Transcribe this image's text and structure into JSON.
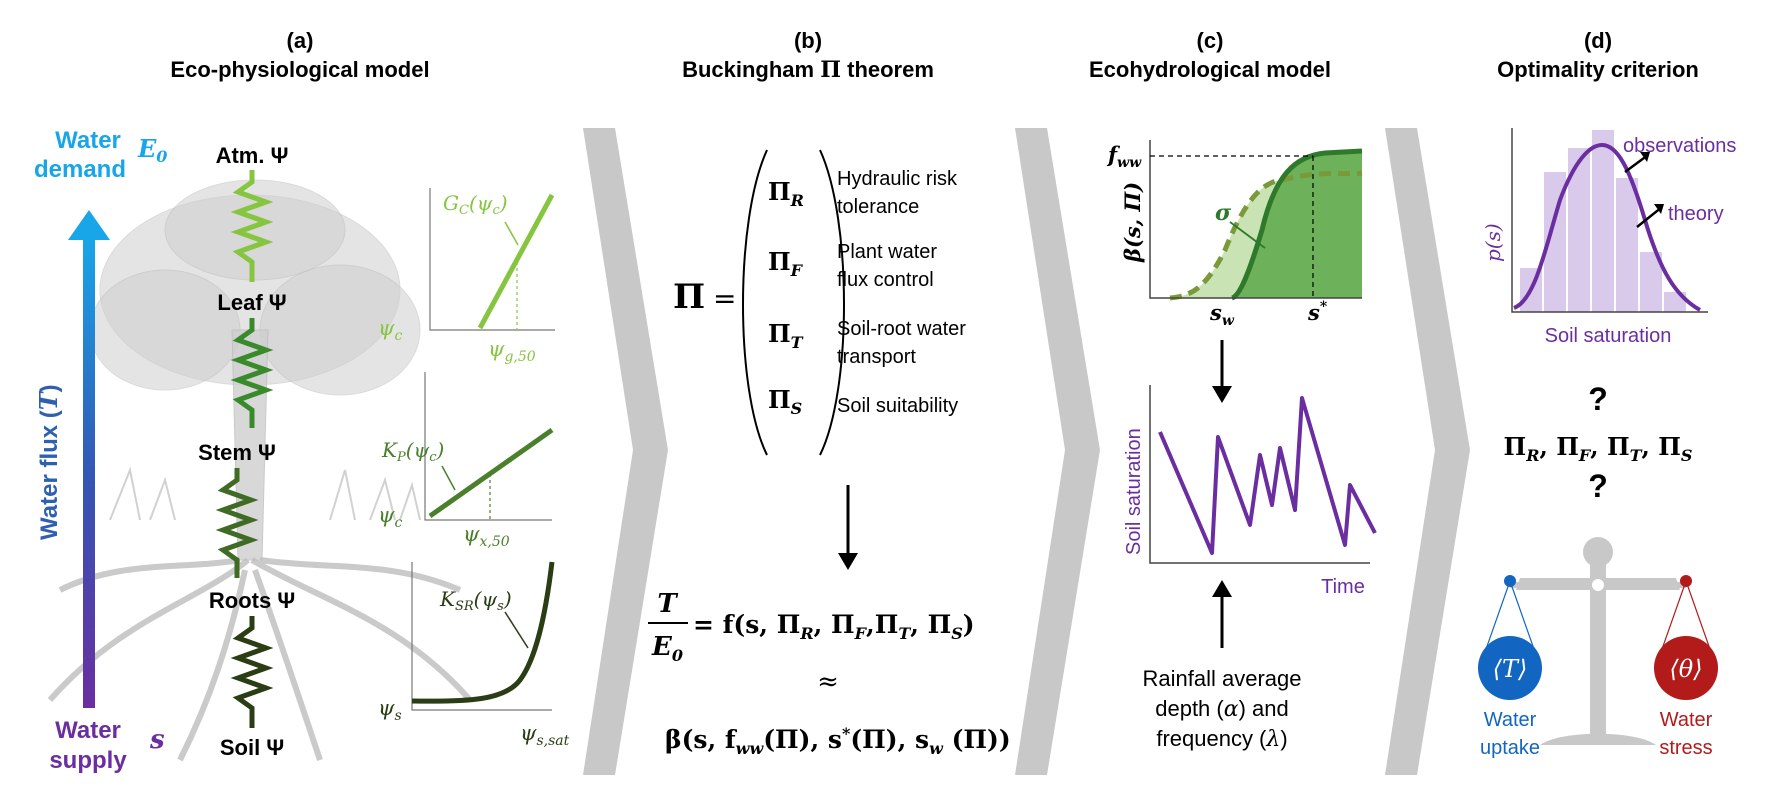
{
  "panel_a": {
    "letter": "(a)",
    "title": "Eco-physiological model",
    "water_demand_line1": "Water",
    "water_demand_line2": "demand",
    "e0": "E",
    "e0_sub": "0",
    "water_supply_line1": "Water",
    "water_supply_line2": "supply",
    "s_symbol": "s",
    "flux_label": "Water flux (",
    "flux_symbol": "T",
    "flux_close": ")",
    "nodes": [
      "Atm. Ψ",
      "Leaf Ψ",
      "Stem Ψ",
      "Roots Ψ",
      "Soil Ψ"
    ],
    "curves": [
      {
        "func": "G",
        "func_sub": "C",
        "arg": "(ψ",
        "arg_sub": "c",
        "close": ")",
        "y_axis": "ψ",
        "y_sub": "c",
        "x_axis": "ψ",
        "x_sub": "g,50",
        "color": "#86c540"
      },
      {
        "func": "K",
        "func_sub": "P",
        "arg": "(ψ",
        "arg_sub": "c",
        "close": ")",
        "y_axis": "ψ",
        "y_sub": "c",
        "x_axis": "ψ",
        "x_sub": "x,50",
        "color": "#4a7f2c"
      },
      {
        "func": "K",
        "func_sub": "SR",
        "arg": "(ψ",
        "arg_sub": "s",
        "close": ")",
        "y_axis": "ψ",
        "y_sub": "s",
        "x_axis": "ψ",
        "x_sub": "s,sat",
        "color": "#2b3d14"
      }
    ]
  },
  "panel_b": {
    "letter": "(b)",
    "title_pre": "Buckingham ",
    "title_pi": "Π",
    "title_post": " theorem",
    "pi": "Π",
    "equals": "=",
    "groups": [
      {
        "sub": "R",
        "desc1": "Hydraulic risk",
        "desc2": "tolerance"
      },
      {
        "sub": "F",
        "desc1": "Plant water",
        "desc2": "flux control"
      },
      {
        "sub": "T",
        "desc1": "Soil-root water",
        "desc2": "transport"
      },
      {
        "sub": "S",
        "desc1": "Soil suitability",
        "desc2": ""
      }
    ],
    "eq_num": "T",
    "eq_den": "E",
    "eq_den_sub": "0",
    "eq_rhs": "= f(s, Π",
    "approx": "≈",
    "beta": "β(s, f",
    "beta_ww": "ww",
    "beta_mid": "(Π), s",
    "beta_star": "*",
    "beta_mid2": "(Π), s",
    "beta_w": "w",
    "beta_end": " (Π))"
  },
  "panel_c": {
    "letter": "(c)",
    "title": "Ecohydrological model",
    "fww": "f",
    "fww_sub": "ww",
    "beta_axis": "β(s, Π)",
    "sigma": "σ",
    "sw": "s",
    "sw_sub": "w",
    "sstar": "s",
    "sstar_sup": "*",
    "y_label": "Soil saturation",
    "x_label": "Time",
    "rain_line1": "Rainfall average",
    "rain_line2": "depth (",
    "alpha": "α",
    "rain_line2b": ") and",
    "rain_line3": "frequency (",
    "lambda": "λ",
    "rain_line3b": ")",
    "colors": {
      "green_dark": "#2f7a2a",
      "green_fill": "#6db25b",
      "green_light": "#c9e3b5",
      "dash_green": "#7a9a3a",
      "purple": "#6a2ea0"
    }
  },
  "panel_d": {
    "letter": "(d)",
    "title": "Optimality criterion",
    "p_s": "p(s)",
    "observations": "observations",
    "theory": "theory",
    "x_label": "Soil saturation",
    "question": "?",
    "groups_text": "Π",
    "t_symbol": "⟨T⟩",
    "theta_symbol": "⟨θ⟩",
    "uptake_line1": "Water",
    "uptake_line2": "uptake",
    "stress_line1": "Water",
    "stress_line2": "stress",
    "colors": {
      "blue": "#1266c2",
      "red": "#b31b1b",
      "purple": "#6a2ea0",
      "bars": "#d9c9ea"
    }
  },
  "chevron_color": "#c8c8c8"
}
